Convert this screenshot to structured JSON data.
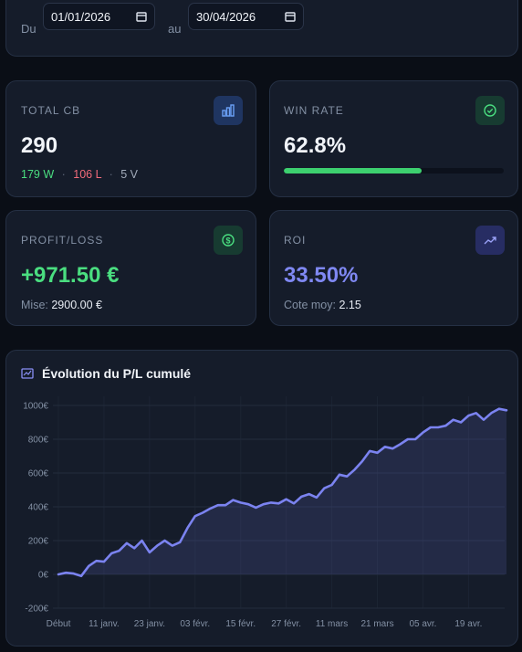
{
  "filters": {
    "from_label": "Du",
    "from_value": "01/01/2026",
    "to_label": "au",
    "to_value": "30/04/2026"
  },
  "stats": {
    "total": {
      "label": "TOTAL CB",
      "value": "290",
      "wins": "179 W",
      "separator": "·",
      "losses": "106 L",
      "voids": "5 V"
    },
    "winrate": {
      "label": "WIN RATE",
      "value": "62.8%",
      "progress": 62.8,
      "progress_lim": [
        0,
        100
      ]
    },
    "profit": {
      "label": "PROFIT/LOSS",
      "value": "+971.50 €",
      "stake_label": "Mise:",
      "stake_value": "2900.00 €"
    },
    "roi": {
      "label": "ROI",
      "value": "33.50%",
      "odds_label": "Cote moy:",
      "odds_value": "2.15"
    }
  },
  "chart_data": {
    "type": "line",
    "title": "Évolution du P/L cumulé",
    "color": "#7b83f0",
    "categories": [
      "Début",
      null,
      null,
      null,
      null,
      null,
      "11 janv.",
      null,
      null,
      null,
      null,
      null,
      "23 janv.",
      null,
      null,
      null,
      null,
      null,
      "03 févr.",
      null,
      null,
      null,
      null,
      null,
      "15 févr.",
      null,
      null,
      null,
      null,
      null,
      "27 févr.",
      null,
      null,
      null,
      null,
      null,
      "11 mars",
      null,
      null,
      null,
      null,
      null,
      "21 mars",
      null,
      null,
      null,
      null,
      null,
      "05 avr.",
      null,
      null,
      null,
      null,
      null,
      "19 avr.",
      null,
      null,
      null,
      null,
      null
    ],
    "values": [
      0,
      10,
      5,
      -10,
      50,
      80,
      75,
      125,
      140,
      185,
      155,
      200,
      130,
      170,
      200,
      170,
      190,
      275,
      345,
      365,
      390,
      410,
      410,
      440,
      425,
      415,
      395,
      415,
      425,
      420,
      445,
      420,
      460,
      475,
      455,
      510,
      530,
      590,
      580,
      620,
      670,
      730,
      720,
      755,
      745,
      770,
      800,
      800,
      840,
      870,
      870,
      880,
      915,
      900,
      940,
      955,
      915,
      955,
      980,
      971.5
    ],
    "ylim": [
      -200,
      1000
    ],
    "yticks": [
      {
        "value": -200,
        "label": "-200€"
      },
      {
        "value": 0,
        "label": "0€"
      },
      {
        "value": 200,
        "label": "200€"
      },
      {
        "value": 400,
        "label": "400€"
      },
      {
        "value": 600,
        "label": "600€"
      },
      {
        "value": 800,
        "label": "800€"
      },
      {
        "value": 1000,
        "label": "1000€"
      }
    ],
    "grid": true
  }
}
